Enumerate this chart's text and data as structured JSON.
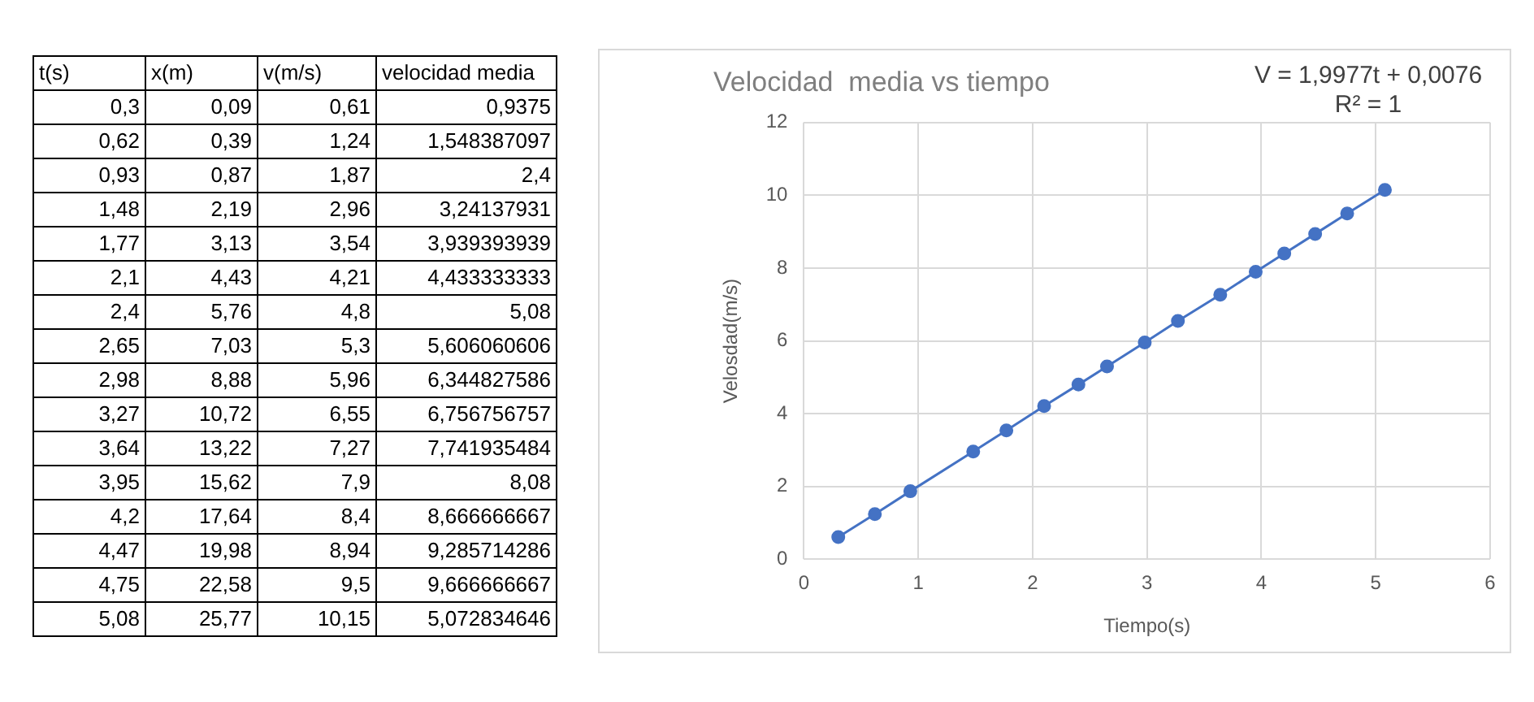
{
  "chart_data": [
    {
      "type": "other",
      "annotations": [
        "t(s)",
        "x(m)",
        "v(m/s)",
        "velocidad  media",
        "0,3",
        "0,09",
        "0,61",
        "0,9375",
        "0,62",
        "0,39",
        "1,24",
        "1,548387097",
        "0,93",
        "0,87",
        "1,87",
        "2,4",
        "1,48",
        "2,19",
        "2,96",
        "3,24137931",
        "1,77",
        "3,13",
        "3,54",
        "3,939393939",
        "2,1",
        "4,43",
        "4,21",
        "4,433333333",
        "2,4",
        "5,76",
        "4,8",
        "5,08",
        "2,65",
        "7,03",
        "5,3",
        "5,606060606",
        "2,98",
        "8,88",
        "5,96",
        "6,344827586",
        "3,27",
        "10,72",
        "6,55",
        "6,756756757",
        "3,64",
        "13,22",
        "7,27",
        "7,741935484",
        "3,95",
        "15,62",
        "7,9",
        "8,08",
        "4,2",
        "17,64",
        "8,4",
        "8,666666667",
        "4,47",
        "19,98",
        "8,94",
        "9,285714286",
        "4,75",
        "22,58",
        "9,5",
        "9,666666667",
        "5,08",
        "25,77",
        "10,15",
        "5,072834646"
      ]
    },
    {
      "type": "line",
      "title": "Velocidad  media vs tiempo",
      "xlabel": "Tiempo(s)",
      "ylabel": "Velosdad(m/s)",
      "annotations": [
        "V = 1,9977t + 0,0076",
        "R² = 1"
      ],
      "x": [
        0.3,
        0.62,
        0.93,
        1.48,
        1.77,
        2.1,
        2.4,
        2.65,
        2.98,
        3.27,
        3.64,
        3.95,
        4.2,
        4.47,
        4.75,
        5.08
      ],
      "values": [
        0.61,
        1.24,
        1.87,
        2.96,
        3.54,
        4.21,
        4.8,
        5.3,
        5.96,
        6.55,
        7.27,
        7.9,
        8.4,
        8.94,
        9.5,
        10.15
      ],
      "color": "#4472c4",
      "marker": "circle",
      "line_style": "solid",
      "xlim": [
        0,
        6
      ],
      "xticks": [
        0,
        1,
        2,
        3,
        4,
        5,
        6
      ],
      "ylim": [
        0,
        12
      ],
      "yticks": [
        0,
        2,
        4,
        6,
        8,
        10,
        12
      ],
      "grid": true
    }
  ]
}
